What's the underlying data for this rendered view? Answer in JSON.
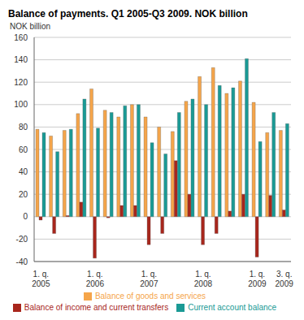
{
  "chart_data": {
    "type": "bar",
    "title": "Balance of payments. Q1 2005-Q3 2009. NOK billion",
    "y_label": "NOK billion",
    "categories": [
      "1. q. 2005",
      null,
      null,
      null,
      "1. q. 2006",
      null,
      null,
      null,
      "1. q. 2007",
      null,
      null,
      null,
      "1. q. 2008",
      null,
      null,
      null,
      "1. q. 2009",
      null,
      "3. q. 2009"
    ],
    "series": [
      {
        "name": "Balance of goods and services",
        "color": "#f5a54a",
        "values": [
          78,
          72,
          77,
          92,
          114,
          95,
          89,
          100,
          89,
          80,
          76,
          103,
          125,
          133,
          110,
          121,
          102,
          75,
          77
        ]
      },
      {
        "name": "Balance of income and current transfers",
        "color": "#a8261c",
        "values": [
          -3,
          -15,
          1,
          13,
          -37,
          -1,
          10,
          10,
          -25,
          -15,
          50,
          20,
          -25,
          -15,
          5,
          20,
          -36,
          19,
          6
        ]
      },
      {
        "name": "Current account balance",
        "color": "#1a9a95",
        "values": [
          75,
          58,
          78,
          105,
          79,
          93,
          99,
          100,
          66,
          56,
          93,
          105,
          100,
          117,
          115,
          141,
          67,
          93,
          83
        ]
      }
    ],
    "ylim": [
      -40,
      160
    ],
    "yticks": [
      -40,
      -20,
      0,
      20,
      40,
      60,
      80,
      100,
      120,
      140,
      160
    ],
    "grid": true,
    "legend": "bottom"
  }
}
